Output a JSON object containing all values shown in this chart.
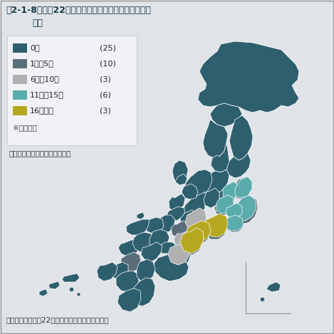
{
  "title_line1": "図2-1-8　平成22年の各都道府県の注意報等発令延べ",
  "title_line2": "日数",
  "legend_items": [
    {
      "label": "0日",
      "count": "(25)",
      "color": "#2e5f6e"
    },
    {
      "label": "1日～5日",
      "count": "(10)",
      "color": "#5a6e7a"
    },
    {
      "label": "6日～10日",
      "count": "(3)",
      "color": "#b0b0b0"
    },
    {
      "label": "11日～15日",
      "count": "(6)",
      "color": "#5aacac"
    },
    {
      "label": "16日以上",
      "count": "(3)",
      "color": "#b5a820"
    }
  ],
  "note1": "※延べ日数",
  "note2": "（　）内は都道府県数を示す。",
  "source": "出典：環境省「年22年光化学大気汚染関係資料」",
  "bg_color": "#e0e4e8",
  "title_color": "#1a5276",
  "legend_bg": "#f0f2f4",
  "border_color": "#aaaaaa"
}
